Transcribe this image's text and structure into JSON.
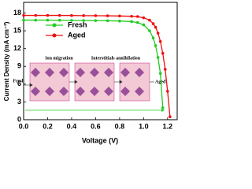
{
  "chart_data": {
    "type": "line",
    "xlabel": "Voltage (V)",
    "ylabel": "Current Density (mA cm⁻²)",
    "x": [
      0,
      0.1,
      0.2,
      0.3,
      0.4,
      0.5,
      0.6,
      0.7,
      0.8,
      0.9,
      0.95,
      1.0,
      1.05,
      1.08,
      1.1,
      1.12,
      1.14,
      1.16,
      1.18,
      1.2,
      1.22
    ],
    "series": [
      {
        "name": "Fresh",
        "color": "#22cc22",
        "values": [
          16.8,
          16.8,
          16.8,
          16.78,
          16.76,
          16.74,
          16.72,
          16.7,
          16.65,
          16.55,
          16.4,
          16.0,
          15.0,
          13.8,
          12.5,
          10.5,
          7.8,
          2.0,
          null,
          null,
          null
        ]
      },
      {
        "name": "Aged",
        "color": "#ee1111",
        "values": [
          17.6,
          17.6,
          17.6,
          17.6,
          17.58,
          17.56,
          17.55,
          17.53,
          17.5,
          17.45,
          17.4,
          17.2,
          16.8,
          16.2,
          15.6,
          14.6,
          13.2,
          11.2,
          8.5,
          4.8,
          0.5
        ]
      }
    ],
    "xlim": [
      0,
      1.28
    ],
    "xticks": [
      {
        "value": 0,
        "label": "0.0"
      },
      0.2,
      0.4,
      0.6,
      0.8,
      {
        "value": 1,
        "label": "1.0"
      },
      1.2
    ],
    "ylim": [
      0,
      19.8
    ],
    "yticks": [
      0,
      3,
      6,
      9,
      12,
      15,
      18
    ],
    "legend": "upper center",
    "annotations": [
      "Ion migration",
      "Interstitials annihilation",
      "Fresh",
      "Aged"
    ]
  }
}
